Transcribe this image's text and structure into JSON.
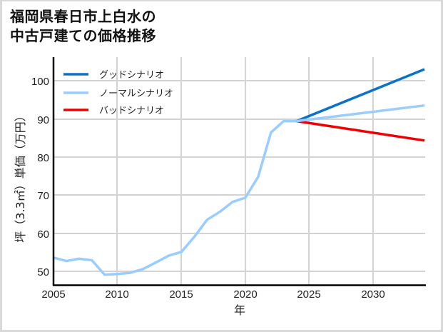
{
  "title": {
    "line1": "福岡県春日市上白水の",
    "line2": "中古戸建ての価格推移"
  },
  "colors": {
    "good": "#0a72c8",
    "normal": "#99ccff",
    "bad": "#ee0000",
    "grid": "#d3d3d3",
    "axis": "#000000"
  },
  "chart_data": {
    "type": "line",
    "title": "福岡県春日市上白水の中古戸建ての価格推移",
    "xlabel": "年",
    "ylabel": "坪（3.3㎡）単価（万円）",
    "xlim": [
      2005,
      2034
    ],
    "ylim": [
      46.5,
      106
    ],
    "xticks": [
      2005,
      2010,
      2015,
      2020,
      2025,
      2030
    ],
    "yticks": [
      50,
      60,
      70,
      80,
      90,
      100
    ],
    "grid": true,
    "legend_position": "upper left",
    "legend": [
      "グッドシナリオ",
      "ノーマルシナリオ",
      "バッドシナリオ"
    ],
    "series": [
      {
        "name": "ノーマルシナリオ (実績)",
        "color": "#99ccff",
        "x": [
          2005,
          2006,
          2007,
          2008,
          2009,
          2010,
          2011,
          2012,
          2013,
          2014,
          2015,
          2016,
          2017,
          2018,
          2019,
          2020,
          2021,
          2022,
          2023,
          2024
        ],
        "y": [
          53.6,
          52.7,
          53.3,
          52.9,
          49.1,
          49.3,
          49.6,
          50.6,
          52.3,
          54.1,
          55.1,
          59.0,
          63.5,
          65.6,
          68.2,
          69.3,
          74.8,
          86.4,
          89.4,
          89.4
        ]
      },
      {
        "name": "グッドシナリオ",
        "color": "#0a72c8",
        "x": [
          2024,
          2034
        ],
        "y": [
          89.4,
          103.0
        ]
      },
      {
        "name": "ノーマルシナリオ",
        "color": "#99ccff",
        "x": [
          2024,
          2034
        ],
        "y": [
          89.4,
          93.5
        ]
      },
      {
        "name": "バッドシナリオ",
        "color": "#ee0000",
        "x": [
          2024,
          2034
        ],
        "y": [
          89.4,
          84.3
        ]
      }
    ]
  },
  "axis": {
    "x_label": "年",
    "y_label": "坪（3.3㎡）単価（万円）",
    "x_ticks": [
      "2005",
      "2010",
      "2015",
      "2020",
      "2025",
      "2030"
    ],
    "y_ticks": [
      "100",
      "90",
      "80",
      "70",
      "60",
      "50"
    ]
  },
  "legend": {
    "items": [
      {
        "label": "グッドシナリオ"
      },
      {
        "label": "ノーマルシナリオ"
      },
      {
        "label": "バッドシナリオ"
      }
    ]
  }
}
